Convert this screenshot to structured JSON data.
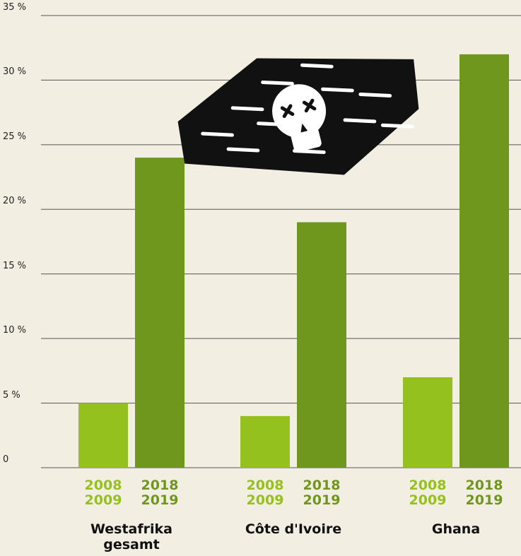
{
  "chart_data": {
    "type": "bar",
    "categories": [
      "Westafrika gesamt",
      "Côte d'Ivoire",
      "Ghana"
    ],
    "series": [
      {
        "name": "2008 2009",
        "color": "#95c11f",
        "values": [
          5,
          4,
          7
        ]
      },
      {
        "name": "2018 2019",
        "color": "#6f971e",
        "values": [
          24,
          19,
          32
        ]
      }
    ],
    "ylim": [
      0,
      35
    ],
    "yticks": [
      0,
      {
        "value": 5,
        "label": "5 %"
      },
      {
        "value": 10,
        "label": "10 %"
      },
      {
        "value": 15,
        "label": "15 %"
      },
      {
        "value": 20,
        "label": "20 %"
      },
      {
        "value": 25,
        "label": "25 %"
      },
      {
        "value": 30,
        "label": "30 %"
      },
      {
        "value": 35,
        "label": "35 %"
      }
    ],
    "grid": true
  }
}
